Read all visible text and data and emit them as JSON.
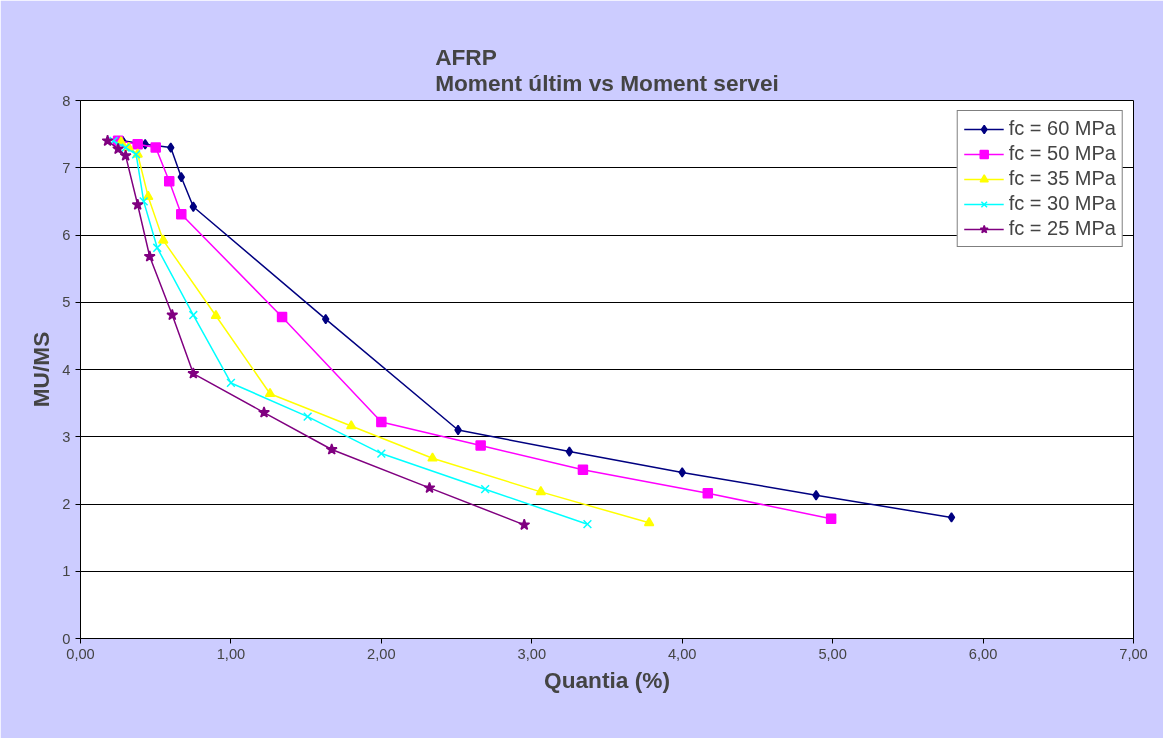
{
  "chart_data": {
    "type": "line",
    "title": "AFRP\nMoment últim vs Moment servei",
    "xlabel": "Quantia (%)",
    "ylabel": "MU/MS",
    "xlim": [
      0,
      7
    ],
    "ylim": [
      0,
      8
    ],
    "xticks": [
      {
        "value": 0,
        "label": "0,00"
      },
      {
        "value": 1,
        "label": "1,00"
      },
      {
        "value": 2,
        "label": "2,00"
      },
      {
        "value": 3,
        "label": "3,00"
      },
      {
        "value": 4,
        "label": "4,00"
      },
      {
        "value": 5,
        "label": "5,00"
      },
      {
        "value": 6,
        "label": "6,00"
      },
      {
        "value": 7,
        "label": "7,00"
      }
    ],
    "yticks": [
      0,
      1,
      2,
      3,
      4,
      5,
      6,
      7,
      8
    ],
    "grid": "y",
    "legend": "top right",
    "series": [
      {
        "name": "fc = 60 MPa",
        "color": "#000080",
        "marker": "diamond",
        "x": [
          0.28,
          0.43,
          0.6,
          0.67,
          0.75,
          1.63,
          2.51,
          3.25,
          4.0,
          4.89,
          5.79
        ],
        "values": [
          7.4,
          7.35,
          7.3,
          6.86,
          6.42,
          4.75,
          3.1,
          2.78,
          2.47,
          2.13,
          1.8
        ]
      },
      {
        "name": "fc = 50 MPa",
        "color": "#ff00ff",
        "marker": "square",
        "x": [
          0.25,
          0.38,
          0.5,
          0.59,
          0.67,
          1.34,
          2.0,
          2.66,
          3.34,
          4.17,
          4.99
        ],
        "values": [
          7.4,
          7.35,
          7.3,
          6.8,
          6.31,
          4.78,
          3.22,
          2.87,
          2.51,
          2.16,
          1.78
        ]
      },
      {
        "name": "fc = 35 MPa",
        "color": "#ffff00",
        "marker": "triangle",
        "x": [
          0.27,
          0.32,
          0.38,
          0.45,
          0.55,
          0.9,
          1.26,
          1.8,
          2.34,
          3.06,
          3.78
        ],
        "values": [
          7.38,
          7.3,
          7.2,
          6.57,
          5.92,
          4.8,
          3.64,
          3.16,
          2.68,
          2.18,
          1.72
        ]
      },
      {
        "name": "fc = 30 MPa",
        "color": "#00ffff",
        "marker": "cross",
        "x": [
          0.22,
          0.3,
          0.37,
          0.42,
          0.51,
          0.75,
          1.0,
          1.51,
          2.0,
          2.69,
          3.37
        ],
        "values": [
          7.4,
          7.3,
          7.2,
          6.5,
          5.81,
          4.81,
          3.8,
          3.3,
          2.75,
          2.22,
          1.7
        ]
      },
      {
        "name": "fc = 25 MPa",
        "color": "#800080",
        "marker": "star",
        "x": [
          0.18,
          0.25,
          0.3,
          0.38,
          0.46,
          0.61,
          0.75,
          1.22,
          1.67,
          2.32,
          2.95
        ],
        "values": [
          7.4,
          7.28,
          7.18,
          6.45,
          5.68,
          4.81,
          3.94,
          3.36,
          2.81,
          2.24,
          1.69
        ]
      }
    ]
  }
}
